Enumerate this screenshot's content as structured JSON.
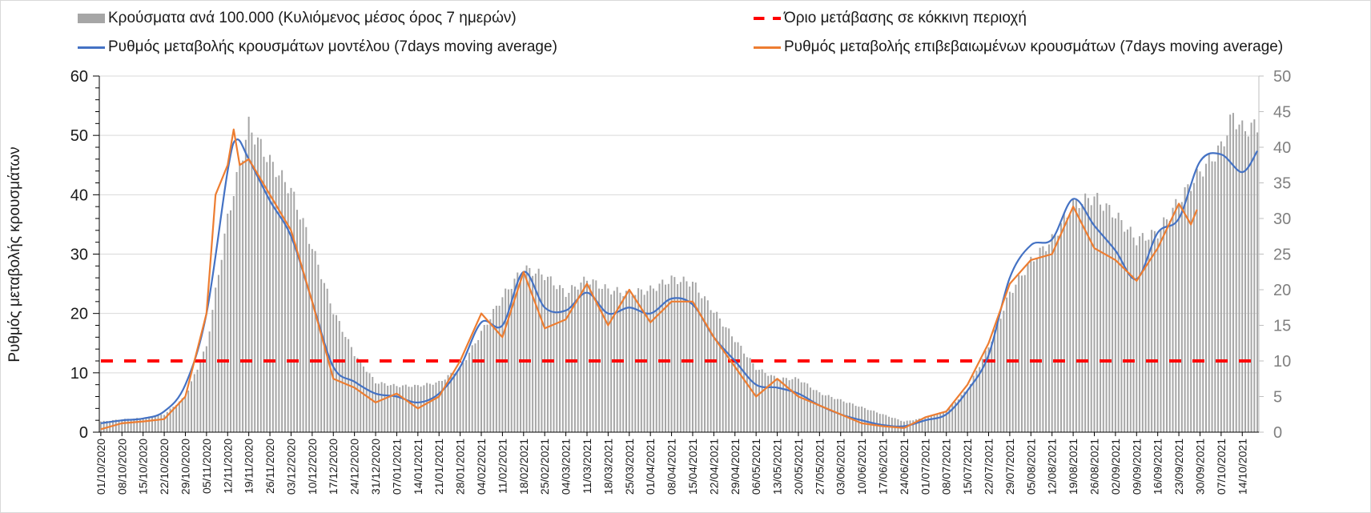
{
  "chart_data": {
    "type": "bar+line",
    "title": "",
    "ylabel": "Ρυθμός μεταβολής κρουσμάτων",
    "ylim_left": [
      0,
      60
    ],
    "ylim_right": [
      0,
      50
    ],
    "yticks_left": [
      "0",
      "10",
      "20",
      "30",
      "40",
      "50",
      "60"
    ],
    "yticks_right": [
      "0",
      "5",
      "10",
      "15",
      "20",
      "25",
      "30",
      "35",
      "40",
      "45",
      "50"
    ],
    "x_unit": "days since 01/10/2020",
    "xlim": [
      0,
      384
    ],
    "xtick_labels": [
      "01/10/2020",
      "08/10/2020",
      "15/10/2020",
      "22/10/2020",
      "29/10/2020",
      "05/11/2020",
      "12/11/2020",
      "19/11/2020",
      "26/11/2020",
      "03/12/2020",
      "10/12/2020",
      "17/12/2020",
      "24/12/2020",
      "31/12/2020",
      "07/01/2021",
      "14/01/2021",
      "21/01/2021",
      "28/01/2021",
      "04/02/2021",
      "11/02/2021",
      "18/02/2021",
      "25/02/2021",
      "04/03/2021",
      "11/03/2021",
      "18/03/2021",
      "25/03/2021",
      "01/04/2021",
      "08/04/2021",
      "15/04/2021",
      "22/04/2021",
      "29/04/2021",
      "06/05/2021",
      "13/05/2021",
      "20/05/2021",
      "27/05/2021",
      "03/06/2021",
      "10/06/2021",
      "17/06/2021",
      "24/06/2021",
      "01/07/2021",
      "08/07/2021",
      "15/07/2021",
      "22/07/2021",
      "29/07/2021",
      "05/08/2021",
      "12/08/2021",
      "19/08/2021",
      "26/08/2021",
      "02/09/2021",
      "09/09/2021",
      "16/09/2021",
      "23/09/2021",
      "30/09/2021",
      "07/10/2021",
      "14/10/2021"
    ],
    "grid": true,
    "legend_position": "top",
    "series": [
      {
        "name": "Κρούσματα ανά 100.000 (Κυλιόμενος μέσος όρος 7 ημερών)",
        "kind": "bar",
        "axis": "right",
        "color": "#a6a6a6",
        "points": [
          [
            0,
            1.5
          ],
          [
            7,
            1.8
          ],
          [
            14,
            2.0
          ],
          [
            21,
            2.5
          ],
          [
            28,
            5
          ],
          [
            35,
            12
          ],
          [
            42,
            30
          ],
          [
            49,
            43
          ],
          [
            56,
            38
          ],
          [
            63,
            34
          ],
          [
            70,
            26
          ],
          [
            77,
            17
          ],
          [
            84,
            11
          ],
          [
            91,
            7
          ],
          [
            98,
            6.5
          ],
          [
            105,
            6.5
          ],
          [
            112,
            7
          ],
          [
            119,
            9
          ],
          [
            126,
            14
          ],
          [
            133,
            19
          ],
          [
            140,
            23
          ],
          [
            147,
            22
          ],
          [
            154,
            19.5
          ],
          [
            161,
            21.5
          ],
          [
            168,
            20
          ],
          [
            175,
            19.5
          ],
          [
            182,
            20
          ],
          [
            189,
            21.5
          ],
          [
            196,
            21
          ],
          [
            203,
            17
          ],
          [
            210,
            13
          ],
          [
            217,
            9
          ],
          [
            224,
            7.5
          ],
          [
            231,
            7.5
          ],
          [
            238,
            5.5
          ],
          [
            245,
            4.5
          ],
          [
            252,
            3.5
          ],
          [
            259,
            2.5
          ],
          [
            266,
            1.5
          ],
          [
            273,
            2
          ],
          [
            280,
            3
          ],
          [
            287,
            6
          ],
          [
            294,
            12
          ],
          [
            301,
            19.5
          ],
          [
            308,
            24
          ],
          [
            315,
            27
          ],
          [
            322,
            32
          ],
          [
            329,
            33
          ],
          [
            336,
            30.5
          ],
          [
            343,
            27
          ],
          [
            350,
            28
          ],
          [
            357,
            32.5
          ],
          [
            364,
            36.5
          ],
          [
            371,
            40
          ],
          [
            375,
            44.5
          ],
          [
            378,
            42.5
          ],
          [
            383,
            43
          ]
        ]
      },
      {
        "name": "Όριο μετάβασης σε κόκκινη περιοχή",
        "kind": "hline",
        "axis": "right",
        "value": 10,
        "color": "#ff0000"
      },
      {
        "name": "Ρυθμός μεταβολής κρουσμάτων μοντέλου (7days moving average)",
        "kind": "line",
        "axis": "left",
        "color": "#4472c4",
        "points": [
          [
            0,
            1.5
          ],
          [
            7,
            2
          ],
          [
            14,
            2.3
          ],
          [
            21,
            3.5
          ],
          [
            28,
            8
          ],
          [
            35,
            20
          ],
          [
            42,
            44
          ],
          [
            45,
            49.3
          ],
          [
            49,
            46
          ],
          [
            56,
            39
          ],
          [
            63,
            33
          ],
          [
            70,
            22
          ],
          [
            77,
            11
          ],
          [
            84,
            8.5
          ],
          [
            91,
            6.5
          ],
          [
            98,
            6
          ],
          [
            105,
            5
          ],
          [
            112,
            6.5
          ],
          [
            119,
            11
          ],
          [
            126,
            18.5
          ],
          [
            133,
            18
          ],
          [
            140,
            27
          ],
          [
            147,
            21
          ],
          [
            154,
            20.5
          ],
          [
            161,
            23.5
          ],
          [
            168,
            20
          ],
          [
            175,
            21
          ],
          [
            182,
            20
          ],
          [
            189,
            22.5
          ],
          [
            196,
            21.5
          ],
          [
            203,
            16
          ],
          [
            210,
            12
          ],
          [
            217,
            8
          ],
          [
            224,
            7.5
          ],
          [
            231,
            6.5
          ],
          [
            238,
            4.5
          ],
          [
            245,
            3
          ],
          [
            252,
            2
          ],
          [
            259,
            1.2
          ],
          [
            266,
            1
          ],
          [
            273,
            2
          ],
          [
            280,
            3
          ],
          [
            287,
            7
          ],
          [
            294,
            13
          ],
          [
            301,
            26
          ],
          [
            308,
            31.5
          ],
          [
            315,
            32.5
          ],
          [
            322,
            39.3
          ],
          [
            329,
            34.8
          ],
          [
            336,
            30.6
          ],
          [
            343,
            25.8
          ],
          [
            350,
            33.6
          ],
          [
            357,
            36
          ],
          [
            364,
            45.6
          ],
          [
            371,
            46.8
          ],
          [
            378,
            43.8
          ],
          [
            383,
            47.4
          ]
        ]
      },
      {
        "name": "Ρυθμός μεταβολής επιβεβαιωμένων κρουσμάτων (7days moving average)",
        "kind": "line",
        "axis": "left",
        "color": "#ed7d31",
        "points": [
          [
            0,
            0.5
          ],
          [
            7,
            1.5
          ],
          [
            14,
            1.8
          ],
          [
            21,
            2.2
          ],
          [
            28,
            6
          ],
          [
            35,
            20
          ],
          [
            38,
            40
          ],
          [
            42,
            45
          ],
          [
            44,
            51
          ],
          [
            46,
            45
          ],
          [
            49,
            46
          ],
          [
            56,
            40
          ],
          [
            63,
            34
          ],
          [
            70,
            22
          ],
          [
            77,
            9
          ],
          [
            84,
            7.5
          ],
          [
            91,
            5
          ],
          [
            98,
            6.5
          ],
          [
            105,
            4
          ],
          [
            112,
            6
          ],
          [
            119,
            12
          ],
          [
            126,
            20
          ],
          [
            133,
            16
          ],
          [
            140,
            27
          ],
          [
            147,
            17.5
          ],
          [
            154,
            19
          ],
          [
            161,
            25
          ],
          [
            168,
            18
          ],
          [
            175,
            24
          ],
          [
            182,
            18.5
          ],
          [
            189,
            22
          ],
          [
            196,
            22
          ],
          [
            203,
            16
          ],
          [
            210,
            11
          ],
          [
            217,
            6
          ],
          [
            224,
            9
          ],
          [
            231,
            6
          ],
          [
            238,
            4.5
          ],
          [
            245,
            3
          ],
          [
            252,
            1.5
          ],
          [
            259,
            1
          ],
          [
            266,
            0.7
          ],
          [
            273,
            2.5
          ],
          [
            280,
            3.5
          ],
          [
            287,
            8
          ],
          [
            294,
            15
          ],
          [
            301,
            25
          ],
          [
            308,
            29
          ],
          [
            315,
            30
          ],
          [
            322,
            38
          ],
          [
            329,
            31
          ],
          [
            336,
            29
          ],
          [
            343,
            25.5
          ],
          [
            350,
            31
          ],
          [
            357,
            38.5
          ],
          [
            361,
            35
          ],
          [
            363,
            37.5
          ]
        ]
      }
    ]
  },
  "legend": {
    "bars": "Κρούσματα ανά 100.000 (Κυλιόμενος μέσος όρος 7 ημερών)",
    "threshold": "Όριο μετάβασης σε κόκκινη περιοχή",
    "model": "Ρυθμός μεταβολής κρουσμάτων μοντέλου (7days moving average)",
    "confirmed": "Ρυθμός μεταβολής επιβεβαιωμένων κρουσμάτων (7days moving average)"
  }
}
